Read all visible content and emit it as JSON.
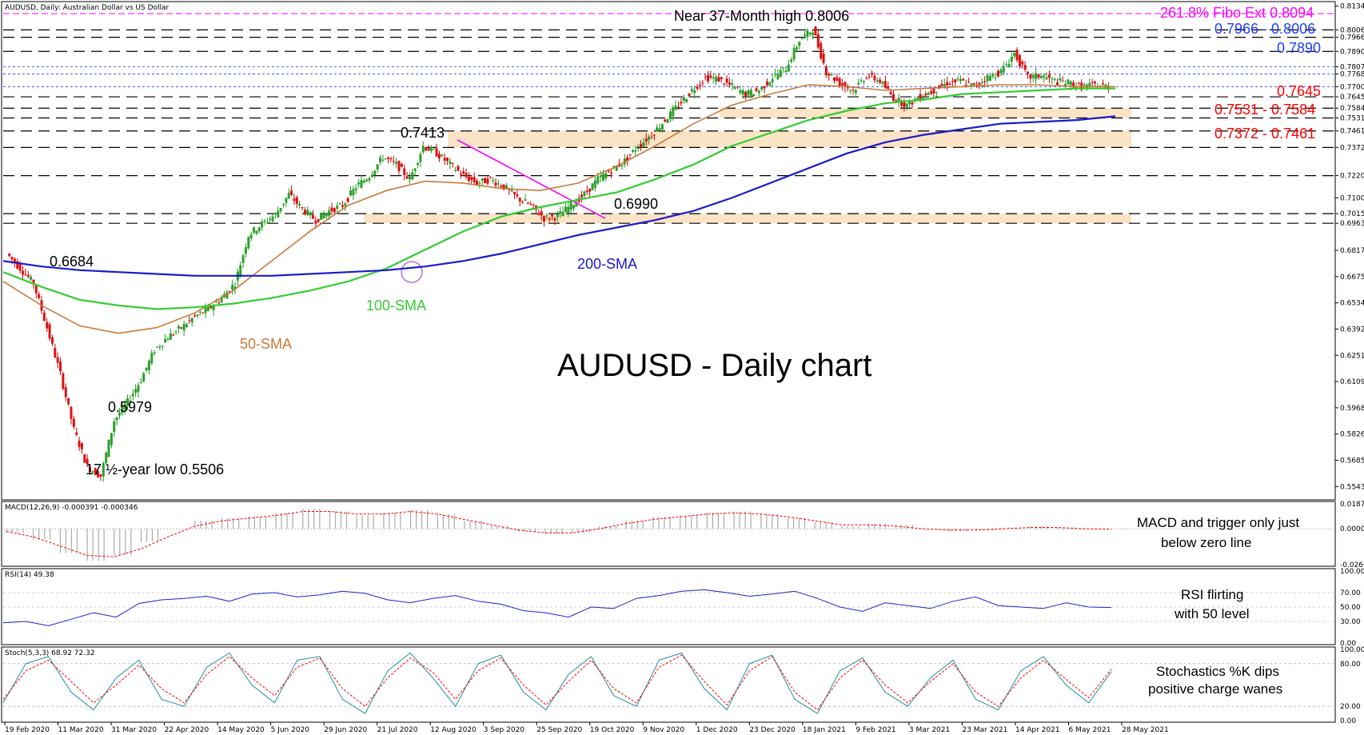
{
  "colors": {
    "price_level_red": "#ff0000",
    "price_level_blue": "#1f3cff",
    "fibo_magenta": "#ff00ff",
    "sma200": "#1a1acc",
    "sma100": "#33cc33",
    "sma50": "#c87a3a",
    "kumo": "#f2c08a",
    "zone_fill": "#fbe3c6",
    "rsi_line": "#2222cc",
    "stoch_k": "#1e8fa0",
    "stoch_d": "#ff0000",
    "macd_hist": "#aaaaaa",
    "macd_signal": "#ff0000"
  },
  "chart_data": [
    {
      "type": "candlestick",
      "panel": "price",
      "header": "AUDUSD, Daily: Australian Dollar vs US Dollar",
      "title": "AUDUSD - Daily chart",
      "price_axis_ticks": [
        "0.81340",
        "0.80060",
        "0.79660",
        "0.78900",
        "0.78075",
        "0.77680",
        "0.77000",
        "0.76450",
        "0.75840",
        "0.75310",
        "0.74610",
        "0.73720",
        "0.72200",
        "0.71000",
        "0.70150",
        "0.69630",
        "0.68175",
        "0.66755",
        "0.65340",
        "0.63925",
        "0.62510",
        "0.61095",
        "0.59680",
        "0.58265",
        "0.56850",
        "0.55435"
      ],
      "date_ticks": [
        "19 Feb 2020",
        "11 Mar 2020",
        "31 Mar 2020",
        "22 Apr 2020",
        "14 May 2020",
        "5 Jun 2020",
        "29 Jun 2020",
        "21 Jul 2020",
        "12 Aug 2020",
        "3 Sep 2020",
        "25 Sep 2020",
        "19 Oct 2020",
        "9 Nov 2020",
        "1 Dec 2020",
        "23 Dec 2020",
        "18 Jan 2021",
        "9 Feb 2021",
        "3 Mar 2021",
        "23 Mar 2021",
        "14 Apr 2021",
        "6 May 2021",
        "28 May 2021"
      ],
      "ylim": [
        0.548,
        0.815
      ],
      "horizontal_levels": [
        {
          "label": "261.8% Fibo Ext 0.8094",
          "value": 0.8094,
          "color": "#ff00ff"
        },
        {
          "label": "0.7966 - 0.8006",
          "value": 0.7966,
          "value2": 0.8006,
          "color": "#1f3cff"
        },
        {
          "label": "0.7890",
          "value": 0.789,
          "color": "#1f3cff"
        },
        {
          "label": "0.7645",
          "value": 0.7645,
          "color": "#ff0000"
        },
        {
          "label": "0.7531 - 0.7584",
          "value": 0.7531,
          "value2": 0.7584,
          "color": "#ff0000"
        },
        {
          "label": "0.7372 - 0.7461",
          "value": 0.7372,
          "value2": 0.7461,
          "color": "#ff0000"
        }
      ],
      "support_zones": [
        {
          "low": 0.7531,
          "high": 0.7584
        },
        {
          "low": 0.7372,
          "high": 0.7461
        },
        {
          "low": 0.6963,
          "high": 0.7015
        }
      ],
      "annotations": [
        {
          "text": "Near 37-Month high 0.8006"
        },
        {
          "text": "0.7413"
        },
        {
          "text": "0.6990"
        },
        {
          "text": "0.6684"
        },
        {
          "text": "0.5979"
        },
        {
          "text": "17 ½-year low 0.5506"
        },
        {
          "text": "200-SMA"
        },
        {
          "text": "100-SMA"
        },
        {
          "text": "50-SMA"
        }
      ],
      "close_path": [
        0.68,
        0.672,
        0.664,
        0.64,
        0.615,
        0.585,
        0.565,
        0.56,
        0.59,
        0.6,
        0.612,
        0.628,
        0.635,
        0.64,
        0.646,
        0.65,
        0.656,
        0.664,
        0.69,
        0.696,
        0.701,
        0.712,
        0.704,
        0.698,
        0.703,
        0.706,
        0.716,
        0.722,
        0.732,
        0.728,
        0.72,
        0.738,
        0.734,
        0.728,
        0.722,
        0.718,
        0.72,
        0.716,
        0.71,
        0.706,
        0.699,
        0.7,
        0.706,
        0.712,
        0.72,
        0.725,
        0.73,
        0.738,
        0.744,
        0.752,
        0.76,
        0.768,
        0.775,
        0.774,
        0.77,
        0.766,
        0.768,
        0.775,
        0.78,
        0.795,
        0.801,
        0.778,
        0.772,
        0.768,
        0.776,
        0.773,
        0.764,
        0.76,
        0.765,
        0.768,
        0.772,
        0.773,
        0.77,
        0.775,
        0.778,
        0.788,
        0.775,
        0.776,
        0.773,
        0.772,
        0.77,
        0.771,
        0.77
      ],
      "sma200": [
        0.676,
        0.673,
        0.671,
        0.67,
        0.669,
        0.668,
        0.668,
        0.668,
        0.669,
        0.67,
        0.671,
        0.673,
        0.676,
        0.68,
        0.685,
        0.69,
        0.694,
        0.698,
        0.703,
        0.71,
        0.718,
        0.726,
        0.734,
        0.74,
        0.744,
        0.747,
        0.75,
        0.751,
        0.752,
        0.754
      ],
      "sma100": [
        0.67,
        0.662,
        0.655,
        0.652,
        0.65,
        0.651,
        0.653,
        0.656,
        0.66,
        0.665,
        0.672,
        0.682,
        0.692,
        0.7,
        0.705,
        0.709,
        0.713,
        0.72,
        0.728,
        0.738,
        0.745,
        0.752,
        0.757,
        0.761,
        0.763,
        0.766,
        0.767,
        0.768,
        0.769,
        0.769
      ],
      "sma50": [
        0.665,
        0.652,
        0.641,
        0.637,
        0.64,
        0.648,
        0.66,
        0.676,
        0.692,
        0.706,
        0.714,
        0.719,
        0.718,
        0.715,
        0.714,
        0.718,
        0.727,
        0.738,
        0.75,
        0.76,
        0.766,
        0.771,
        0.77,
        0.768,
        0.769,
        0.77,
        0.771,
        0.771,
        0.77,
        0.77
      ]
    },
    {
      "type": "histogram",
      "panel": "macd",
      "header": "MACD(12,26,9) -0.000391 -0.000346",
      "ticks": [
        "0.018738",
        "0.000000",
        "-0.026907"
      ],
      "ylim": [
        -0.0269,
        0.0187
      ],
      "values": [
        -0.003,
        -0.008,
        -0.018,
        -0.024,
        -0.02,
        -0.01,
        0.0,
        0.006,
        0.008,
        0.009,
        0.012,
        0.015,
        0.013,
        0.01,
        0.012,
        0.014,
        0.011,
        0.006,
        0.002,
        -0.002,
        -0.004,
        -0.003,
        0.002,
        0.006,
        0.009,
        0.01,
        0.012,
        0.013,
        0.011,
        0.008,
        0.005,
        0.002,
        0.004,
        0.003,
        0.0,
        -0.002,
        -0.001,
        0.001,
        0.002,
        0.001,
        0.0,
        -0.0004
      ],
      "signal": [
        -0.002,
        -0.006,
        -0.013,
        -0.02,
        -0.021,
        -0.015,
        -0.006,
        0.002,
        0.006,
        0.008,
        0.01,
        0.013,
        0.013,
        0.011,
        0.011,
        0.013,
        0.011,
        0.007,
        0.003,
        -0.001,
        -0.003,
        -0.003,
        0.0,
        0.004,
        0.007,
        0.009,
        0.011,
        0.012,
        0.011,
        0.009,
        0.006,
        0.003,
        0.003,
        0.002,
        0.0,
        -0.001,
        -0.001,
        0.0,
        0.001,
        0.001,
        0.0,
        -0.0003
      ],
      "note": [
        "MACD and trigger only just",
        "below zero line"
      ]
    },
    {
      "type": "line",
      "panel": "rsi",
      "header": "RSI(14) 49.38",
      "ticks": [
        "100.00",
        "70.00",
        "50.00",
        "30.00",
        "0.00"
      ],
      "ylim": [
        0,
        100
      ],
      "values": [
        28,
        30,
        24,
        33,
        42,
        36,
        55,
        60,
        62,
        65,
        58,
        68,
        70,
        64,
        67,
        72,
        69,
        60,
        56,
        62,
        66,
        58,
        54,
        45,
        42,
        36,
        50,
        48,
        62,
        66,
        72,
        74,
        70,
        65,
        68,
        72,
        62,
        50,
        44,
        56,
        52,
        48,
        58,
        64,
        52,
        50,
        48,
        56,
        50,
        49.38
      ],
      "note": [
        "RSI flirting",
        "with 50 level"
      ]
    },
    {
      "type": "line",
      "panel": "stochastic",
      "header": "Stoch(5,3,3) 68.92 72.32",
      "ticks": [
        "100.00",
        "80.00",
        "20.00",
        "0.00"
      ],
      "ylim": [
        0,
        100
      ],
      "k_values": [
        25,
        80,
        90,
        40,
        15,
        60,
        85,
        30,
        20,
        75,
        95,
        50,
        25,
        85,
        90,
        30,
        10,
        70,
        95,
        60,
        20,
        80,
        92,
        40,
        15,
        65,
        90,
        35,
        20,
        85,
        95,
        45,
        15,
        80,
        92,
        30,
        10,
        70,
        88,
        40,
        20,
        60,
        85,
        30,
        15,
        70,
        90,
        50,
        25,
        68.92
      ],
      "d_values": [
        30,
        70,
        85,
        55,
        25,
        50,
        78,
        45,
        25,
        65,
        90,
        60,
        35,
        75,
        88,
        45,
        20,
        60,
        88,
        68,
        30,
        70,
        88,
        50,
        22,
        55,
        85,
        45,
        25,
        75,
        92,
        55,
        22,
        70,
        90,
        40,
        15,
        60,
        85,
        50,
        25,
        55,
        80,
        40,
        20,
        60,
        85,
        58,
        32,
        72.32
      ],
      "note": [
        "Stochastics %K dips",
        "positive charge wanes"
      ]
    }
  ]
}
